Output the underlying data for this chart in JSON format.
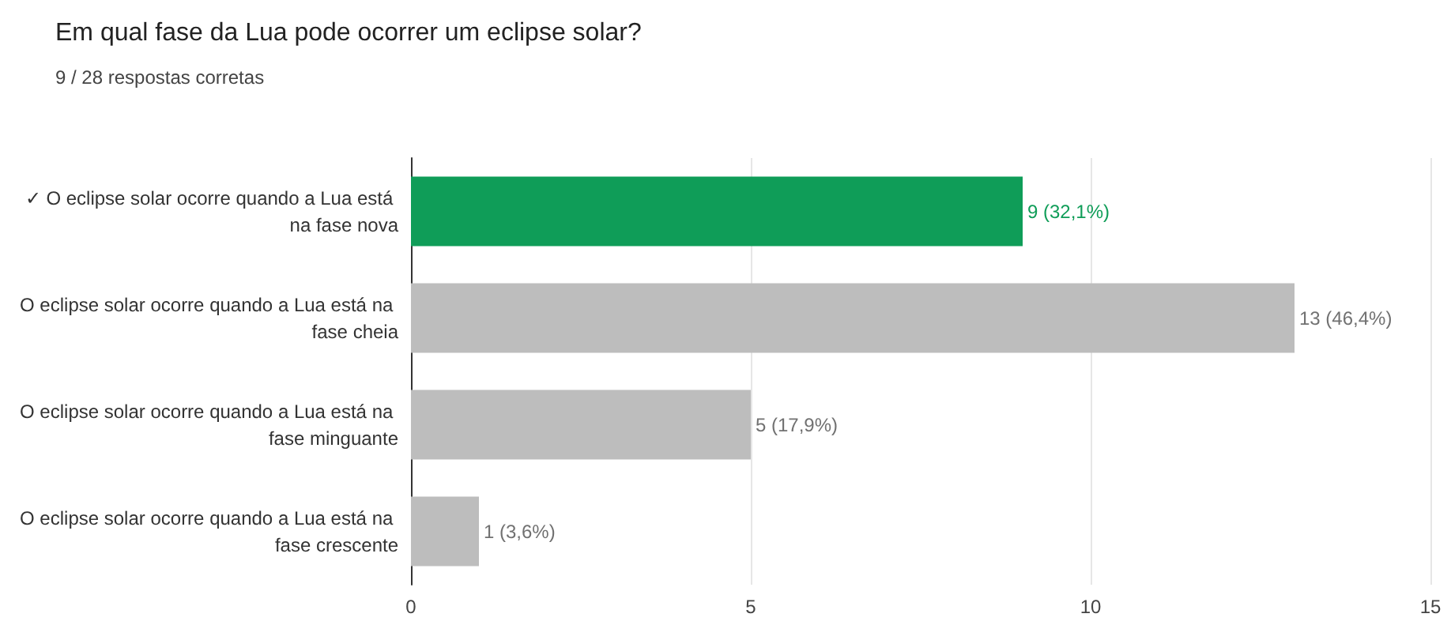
{
  "chart_data": {
    "type": "bar",
    "orientation": "horizontal",
    "title": "Em qual fase da Lua pode ocorrer um eclipse solar?",
    "subtitle": "9 / 28 respostas corretas",
    "categories": [
      "✓ O eclipse solar ocorre quando a Lua está na fase nova",
      "O eclipse solar ocorre quando a Lua está na fase cheia",
      "O eclipse solar ocorre quando a Lua está na fase minguante",
      "O eclipse solar ocorre quando a Lua está na fase crescente"
    ],
    "values": [
      9,
      13,
      5,
      1
    ],
    "colors": [
      "#0f9d58",
      "#bdbdbd",
      "#bdbdbd",
      "#bdbdbd"
    ],
    "value_labels": [
      "9 (32,1%)",
      "13 (46,4%)",
      "5 (17,9%)",
      "1 (3,6%)"
    ],
    "xlim": [
      0,
      15
    ],
    "xticks": [
      0,
      5,
      10,
      15
    ],
    "grid": "x"
  }
}
